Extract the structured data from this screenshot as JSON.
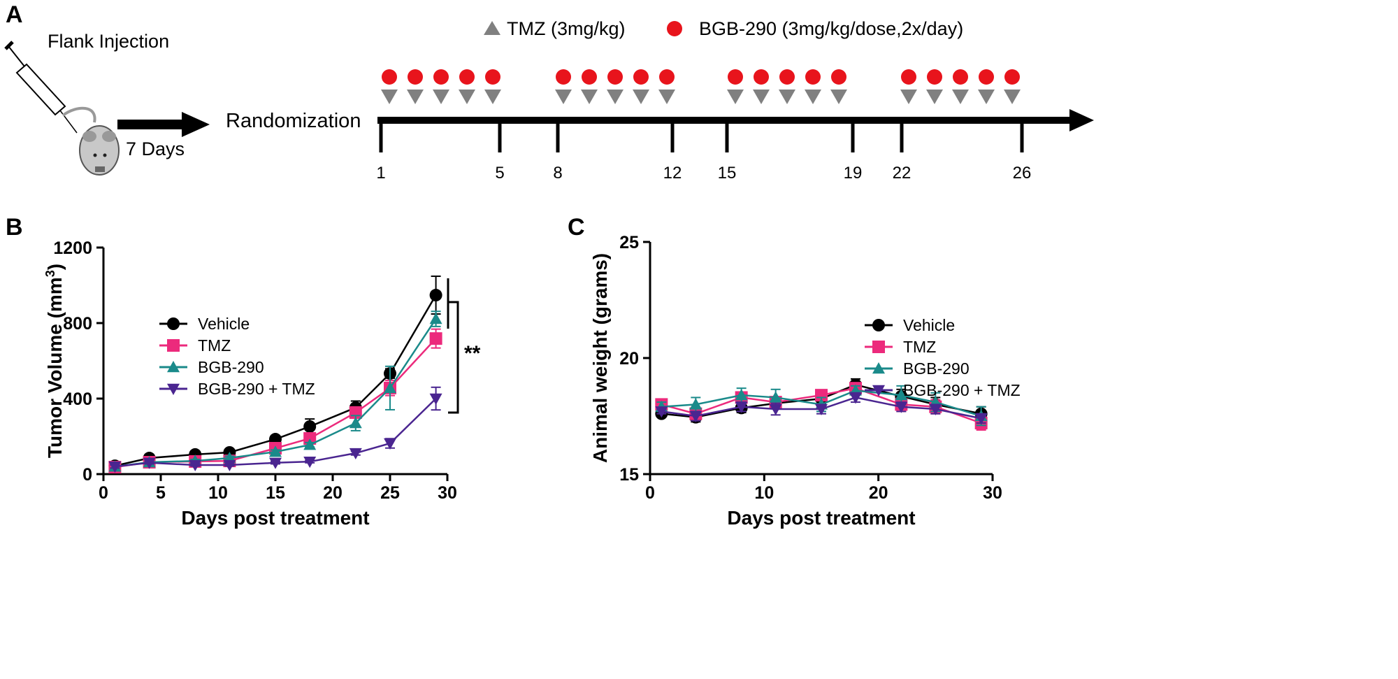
{
  "panels": {
    "a": "A",
    "b": "B",
    "c": "C"
  },
  "schematic": {
    "injection_label": "Flank Injection",
    "wait_label": "7 Days",
    "randomization_label": "Randomization",
    "legend": [
      {
        "symbol": "triangle",
        "color": "#808080",
        "label": "TMZ (3mg/kg)"
      },
      {
        "symbol": "circle",
        "color": "#e8141c",
        "label": "BGB-290 (3mg/kg/dose,2x/day)"
      }
    ],
    "timeline_days": [
      "1",
      "5",
      "8",
      "12",
      "15",
      "19",
      "22",
      "26"
    ],
    "dosing_weeks": 4,
    "doses_per_week": 5
  },
  "chart_data": [
    {
      "type": "line",
      "panel": "B",
      "xlabel": "Days post treatment",
      "ylabel": "Tumor Volume (mm³)",
      "ylabel_main": "Tumor Volume",
      "ylabel_unit": "(mm",
      "ylabel_sup": "3",
      "ylabel_close": ")",
      "xlim": [
        0,
        30
      ],
      "ylim": [
        0,
        1200
      ],
      "xticks": [
        "0",
        "5",
        "10",
        "15",
        "20",
        "25",
        "30"
      ],
      "yticks": [
        "0",
        "400",
        "800",
        "1200"
      ],
      "legend_position": "top-left",
      "annotation": "**",
      "x": [
        1,
        4,
        8,
        11,
        15,
        18,
        22,
        25,
        29
      ],
      "series": [
        {
          "name": "Vehicle",
          "color": "#000000",
          "marker": "circle",
          "values": [
            44,
            85,
            104,
            115,
            185,
            252,
            352,
            533,
            948
          ],
          "error": [
            15,
            10,
            12,
            10,
            12,
            40,
            35,
            25,
            100
          ]
        },
        {
          "name": "TMZ",
          "color": "#ec2a7c",
          "marker": "square",
          "values": [
            37,
            63,
            67,
            70,
            137,
            189,
            326,
            456,
            718
          ],
          "error": [
            10,
            8,
            10,
            8,
            15,
            25,
            30,
            40,
            50
          ]
        },
        {
          "name": "BGB-290",
          "color": "#1a8a8a",
          "marker": "triangle-up",
          "values": [
            40,
            63,
            70,
            85,
            118,
            155,
            270,
            456,
            822
          ],
          "error": [
            8,
            8,
            8,
            10,
            10,
            12,
            40,
            115,
            40
          ]
        },
        {
          "name": "BGB-290 + TMZ",
          "color": "#4a2590",
          "marker": "triangle-down",
          "values": [
            40,
            60,
            48,
            48,
            60,
            66,
            111,
            163,
            400
          ],
          "error": [
            8,
            6,
            6,
            5,
            6,
            6,
            10,
            25,
            60
          ]
        }
      ]
    },
    {
      "type": "line",
      "panel": "C",
      "xlabel": "Days post treatment",
      "ylabel": "Animal weight (grams)",
      "xlim": [
        0,
        30
      ],
      "ylim": [
        15,
        25
      ],
      "xticks": [
        "0",
        "10",
        "20",
        "30"
      ],
      "yticks": [
        "15",
        "20",
        "25"
      ],
      "legend_position": "top-left",
      "x": [
        1,
        4,
        8,
        11,
        15,
        18,
        22,
        25,
        29
      ],
      "series": [
        {
          "name": "Vehicle",
          "color": "#000000",
          "marker": "circle",
          "values": [
            17.6,
            17.45,
            17.85,
            18.05,
            18.25,
            18.85,
            18.35,
            18.0,
            17.6
          ],
          "error": [
            0.1,
            0.2,
            0.2,
            0.2,
            0.2,
            0.25,
            0.3,
            0.3,
            0.3
          ]
        },
        {
          "name": "TMZ",
          "color": "#ec2a7c",
          "marker": "square",
          "values": [
            18.0,
            17.6,
            18.3,
            18.1,
            18.4,
            18.7,
            18.0,
            17.9,
            17.2
          ],
          "error": [
            0.2,
            0.2,
            0.2,
            0.2,
            0.15,
            0.2,
            0.3,
            0.3,
            0.3
          ]
        },
        {
          "name": "BGB-290",
          "color": "#1a8a8a",
          "marker": "triangle-up",
          "values": [
            17.9,
            18.0,
            18.4,
            18.3,
            18.0,
            18.6,
            18.4,
            18.1,
            17.5
          ],
          "error": [
            0.2,
            0.3,
            0.3,
            0.35,
            0.3,
            0.2,
            0.4,
            0.4,
            0.4
          ]
        },
        {
          "name": "BGB-290 + TMZ",
          "color": "#4a2590",
          "marker": "triangle-down",
          "values": [
            17.7,
            17.5,
            17.9,
            17.8,
            17.8,
            18.3,
            17.9,
            17.8,
            17.4
          ],
          "error": [
            0.1,
            0.2,
            0.2,
            0.25,
            0.2,
            0.2,
            0.2,
            0.2,
            0.2
          ]
        }
      ]
    }
  ]
}
